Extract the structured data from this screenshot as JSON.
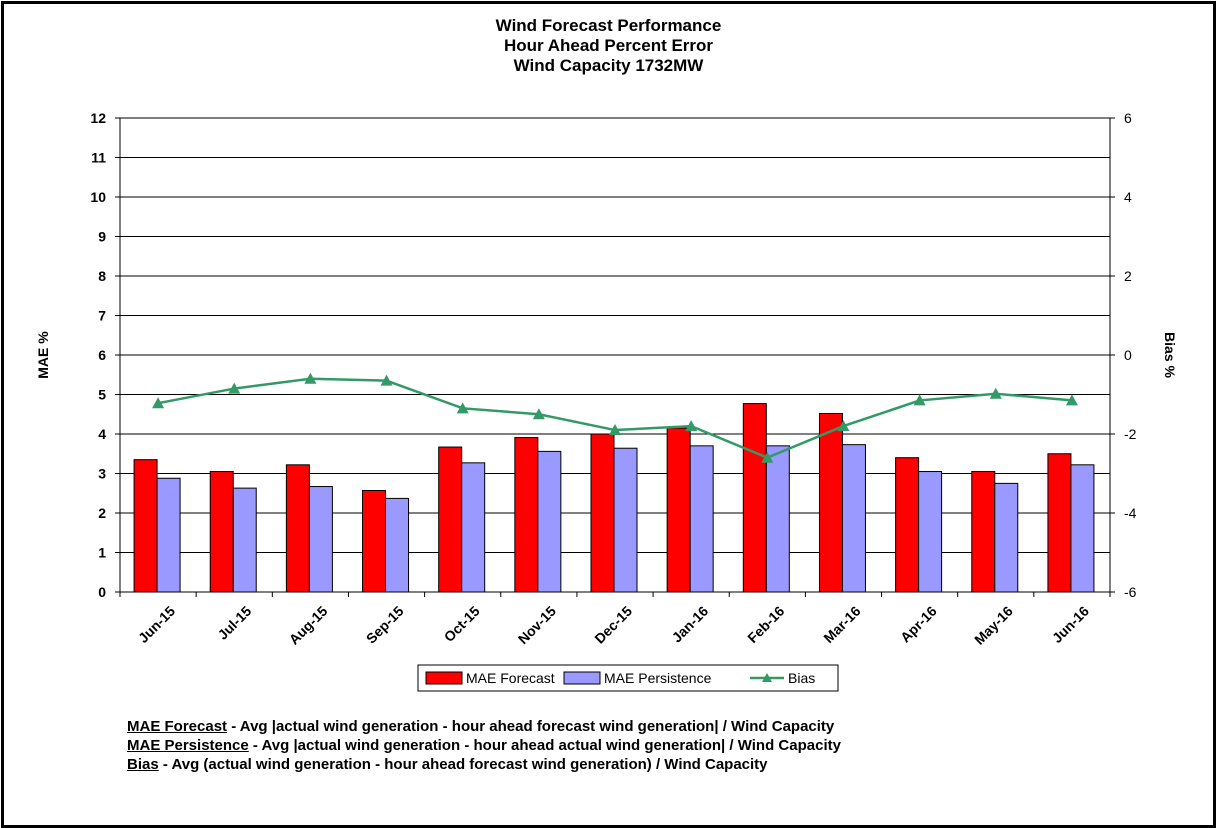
{
  "chart_data": {
    "type": "bar",
    "title": [
      "Wind Forecast Performance",
      "Hour Ahead Percent Error",
      "Wind Capacity 1732MW"
    ],
    "xlabel": "",
    "ylabel": "MAE %",
    "y2label": "Bias %",
    "ylim": [
      0,
      12
    ],
    "y2lim": [
      -6,
      6
    ],
    "yticks": [
      "0",
      "1",
      "2",
      "3",
      "4",
      "5",
      "6",
      "7",
      "8",
      "9",
      "10",
      "11",
      "12"
    ],
    "y2ticks": [
      "-6",
      "-4",
      "-2",
      "0",
      "2",
      "4",
      "6"
    ],
    "categories": [
      "Jun-15",
      "Jul-15",
      "Aug-15",
      "Sep-15",
      "Oct-15",
      "Nov-15",
      "Dec-15",
      "Jan-16",
      "Feb-16",
      "Mar-16",
      "Apr-16",
      "May-16",
      "Jun-16"
    ],
    "series": [
      {
        "name": "MAE Forecast",
        "type": "bar",
        "axis": "left",
        "color": "#ff0000",
        "values": [
          3.35,
          3.05,
          3.22,
          2.57,
          3.67,
          3.91,
          4.0,
          4.15,
          4.77,
          4.52,
          3.4,
          3.05,
          3.5
        ]
      },
      {
        "name": "MAE Persistence",
        "type": "bar",
        "axis": "left",
        "color": "#9999ff",
        "values": [
          2.88,
          2.63,
          2.67,
          2.37,
          3.27,
          3.56,
          3.64,
          3.7,
          3.7,
          3.73,
          3.05,
          2.75,
          3.22
        ]
      },
      {
        "name": "Bias",
        "type": "line",
        "axis": "right",
        "color": "#339966",
        "marker": "triangle",
        "values": [
          -1.22,
          -0.85,
          -0.6,
          -0.65,
          -1.35,
          -1.5,
          -1.9,
          -1.8,
          -2.6,
          -1.8,
          -1.15,
          -0.98,
          -1.15
        ]
      }
    ],
    "legend": {
      "position": "bottom-center",
      "items": [
        "MAE Forecast",
        "MAE Persistence",
        "Bias"
      ]
    },
    "grid": "horizontal major"
  },
  "definitions": [
    {
      "term": "MAE Forecast",
      "text": " - Avg |actual wind generation - hour ahead forecast wind generation| / Wind Capacity"
    },
    {
      "term": "MAE Persistence",
      "text": " - Avg |actual wind generation - hour ahead actual wind generation| / Wind Capacity"
    },
    {
      "term": "Bias",
      "text": " - Avg (actual wind generation - hour ahead forecast wind generation) / Wind Capacity"
    }
  ]
}
